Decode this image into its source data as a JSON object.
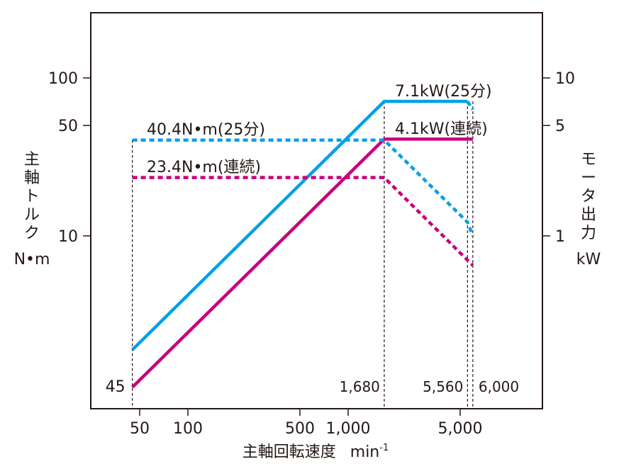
{
  "chart_data": {
    "type": "line",
    "xscale": "log",
    "yscale": "log",
    "xlabel": "主軸回転速度",
    "xunit": "min",
    "xunit_sup": "-1",
    "ylabel_left": [
      "主",
      "軸",
      "ト",
      "ル",
      "ク"
    ],
    "ylabel_left_unit": "N•m",
    "ylabel_right": [
      "モ",
      "ー",
      "タ",
      "出",
      "力"
    ],
    "ylabel_right_unit": "kW",
    "xlim": [
      30,
      15000
    ],
    "ylim_left": [
      1.8,
      170
    ],
    "ylim_right": [
      0.18,
      17
    ],
    "xticks": [
      {
        "v": 50,
        "label": "50"
      },
      {
        "v": 100,
        "label": "100"
      },
      {
        "v": 500,
        "label": "500"
      },
      {
        "v": 1000,
        "label": "1,000"
      },
      {
        "v": 5000,
        "label": "5,000"
      }
    ],
    "yticks_left": [
      {
        "v": 10,
        "label": "10"
      },
      {
        "v": 50,
        "label": "50"
      },
      {
        "v": 100,
        "label": "100"
      }
    ],
    "yticks_right": [
      {
        "v": 1,
        "label": "1"
      },
      {
        "v": 5,
        "label": "5"
      },
      {
        "v": 10,
        "label": "10"
      }
    ],
    "markers": [
      {
        "v": 45,
        "label": "45"
      },
      {
        "v": 1680,
        "label": "1,680"
      },
      {
        "v": 5560,
        "label": "5,560"
      },
      {
        "v": 6000,
        "label": "6,000"
      }
    ],
    "series": [
      {
        "name": "7.1kW(25分)",
        "axis": "right",
        "color": "#00a0e9",
        "style": "solid",
        "x": [
          45,
          1680,
          5560
        ],
        "y": [
          0.19,
          7.1,
          7.1
        ]
      },
      {
        "name": "7.1kW(25分) tail",
        "axis": "right",
        "color": "#00a0e9",
        "style": "dotted",
        "x": [
          5560,
          6000
        ],
        "y": [
          7.1,
          6.3
        ]
      },
      {
        "name": "4.1kW(連続)",
        "axis": "right",
        "color": "#c7007d",
        "style": "solid",
        "x": [
          45,
          1680,
          6000
        ],
        "y": [
          0.11,
          4.1,
          4.1
        ]
      },
      {
        "name": "40.4N•m(25分)",
        "axis": "left",
        "color": "#00a0e9",
        "style": "dotted",
        "x": [
          45,
          1680,
          5560,
          6000
        ],
        "y": [
          40.4,
          40.4,
          12.2,
          10
        ]
      },
      {
        "name": "23.4N•m(連続)",
        "axis": "left",
        "color": "#c7007d",
        "style": "dotted",
        "x": [
          45,
          1680,
          6000
        ],
        "y": [
          23.4,
          23.4,
          6.5
        ]
      }
    ],
    "annotations": [
      "7.1kW(25分)",
      "4.1kW(連続)",
      "40.4N•m(25分)",
      "23.4N•m(連続)"
    ]
  }
}
